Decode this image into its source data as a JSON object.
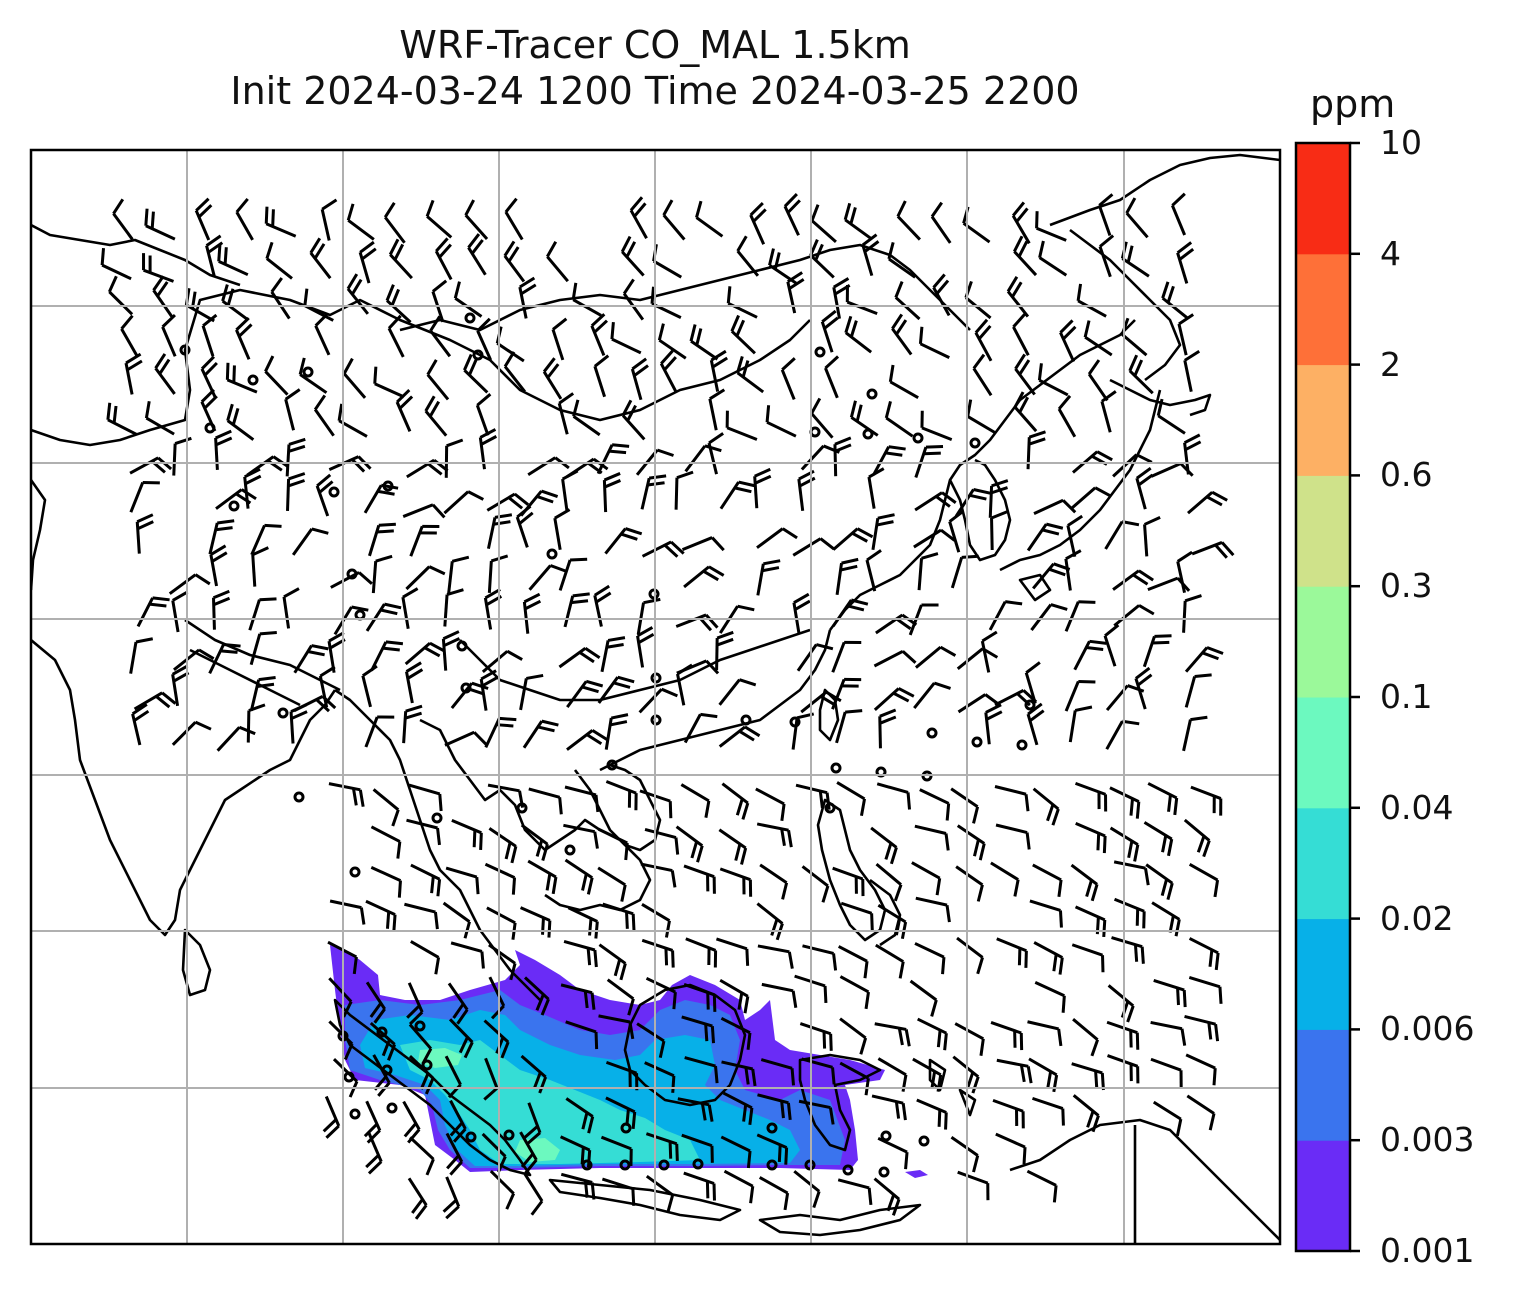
{
  "title": {
    "line1": "WRF-Tracer CO_MAL 1.5km",
    "line2": "Init 2024-03-24 1200 Time 2024-03-25 2200"
  },
  "colorbar": {
    "unit": "ppm",
    "levels": [
      "0.001",
      "0.003",
      "0.006",
      "0.02",
      "0.04",
      "0.1",
      "0.3",
      "0.6",
      "2",
      "4",
      "10"
    ],
    "colors": [
      "#6a2cf6",
      "#3a74ee",
      "#07b0e8",
      "#35ddd5",
      "#6cf9bf",
      "#9bf99a",
      "#cfe28a",
      "#fdb064",
      "#fe7038",
      "#f82c15"
    ]
  },
  "map": {
    "lon_range": [
      70,
      150
    ],
    "lat_range": [
      -15,
      55
    ],
    "gridline_spacing_deg": 10,
    "wind_field": "barbs",
    "tracer_region": "Malaysia / Indonesia plume"
  }
}
